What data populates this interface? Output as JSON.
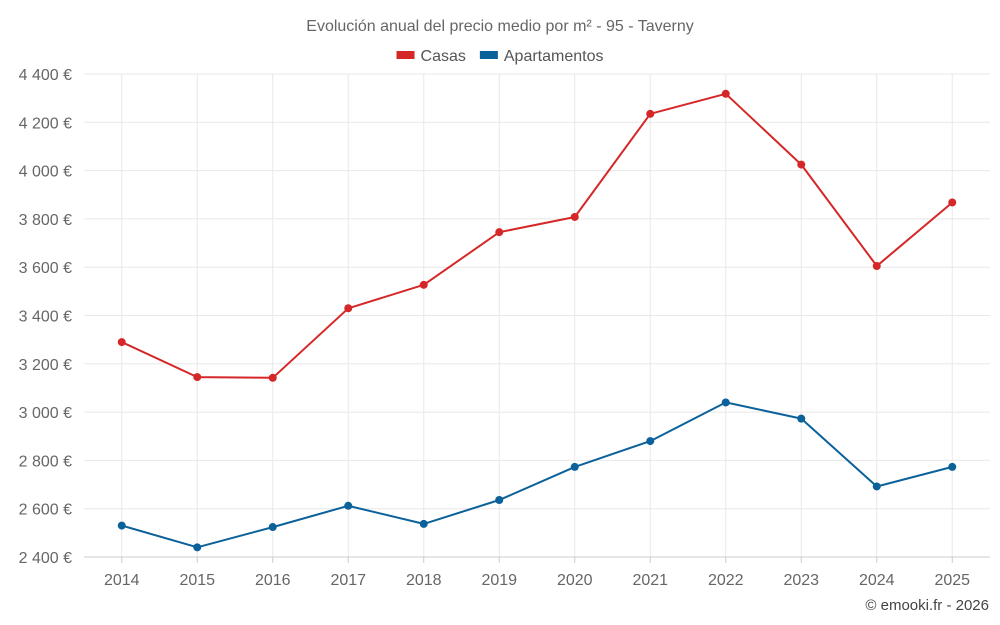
{
  "chart_data": {
    "type": "line",
    "title": "Evolución anual del precio medio por m² - 95 - Taverny",
    "categories": [
      "2014",
      "2015",
      "2016",
      "2017",
      "2018",
      "2019",
      "2020",
      "2021",
      "2022",
      "2023",
      "2024",
      "2025"
    ],
    "ylim": [
      2400,
      4400
    ],
    "yticks": [
      2400,
      2600,
      2800,
      3000,
      3200,
      3400,
      3600,
      3800,
      4000,
      4200,
      4400
    ],
    "ytick_labels": [
      "2 400 €",
      "2 600 €",
      "2 800 €",
      "3 000 €",
      "3 200 €",
      "3 400 €",
      "3 600 €",
      "3 800 €",
      "4 000 €",
      "4 200 €",
      "4 400 €"
    ],
    "xlabel": "",
    "ylabel": "",
    "grid": true,
    "legend_position": "top-center",
    "series": [
      {
        "name": "Casas",
        "color": "#d62728",
        "values": [
          3290,
          3145,
          3142,
          3430,
          3527,
          3745,
          3808,
          4235,
          4318,
          4025,
          3605,
          3868
        ]
      },
      {
        "name": "Apartamentos",
        "color": "#0b6199",
        "values": [
          2530,
          2440,
          2524,
          2612,
          2537,
          2636,
          2773,
          2880,
          3040,
          2973,
          2692,
          2773
        ]
      }
    ]
  },
  "credit": "© emooki.fr - 2026"
}
